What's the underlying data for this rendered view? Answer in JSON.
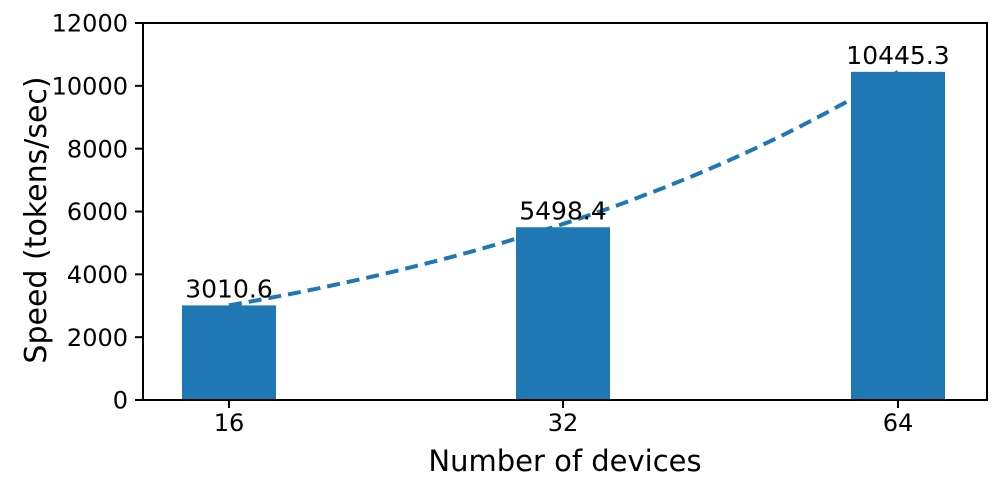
{
  "chart_data": {
    "type": "bar",
    "title": "",
    "categories": [
      "16",
      "32",
      "64"
    ],
    "values": [
      3010.6,
      5498.4,
      10445.3
    ],
    "bar_labels": [
      "3010.6",
      "5498.4",
      "10445.3"
    ],
    "xlabel": "Number of devices",
    "ylabel": "Speed (tokens/sec)",
    "ylim": [
      0,
      12000
    ],
    "yticks": [
      0,
      2000,
      4000,
      6000,
      8000,
      10000,
      12000
    ],
    "grid": false,
    "legend": "none",
    "trend_line": {
      "style": "dashed",
      "shape": "exponential",
      "passes_through_values": [
        3010.6,
        5498.4,
        10445.3
      ]
    },
    "colors": {
      "bar": "#1f77b4",
      "trend_line": "#1f77b4",
      "text": "#000000",
      "spine": "#000000"
    }
  }
}
